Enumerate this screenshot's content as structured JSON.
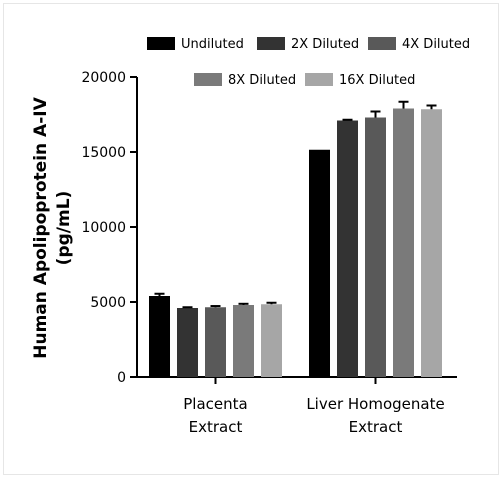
{
  "chart_data": {
    "type": "bar",
    "ylabel_line1": "Human Apolipoprotein A-IV",
    "ylabel_line2": "(pg/mL)",
    "ylim": [
      0,
      20000
    ],
    "yticks": [
      "0",
      "5000",
      "10000",
      "15000",
      "20000"
    ],
    "categories": [
      {
        "line1": "Placenta",
        "line2": "Extract"
      },
      {
        "line1": "Liver Homogenate",
        "line2": "Extract"
      }
    ],
    "series": [
      {
        "name": "Undiluted",
        "color": "#000000",
        "values": [
          5400,
          15150
        ],
        "errors": [
          150,
          0
        ]
      },
      {
        "name": "2X Diluted",
        "color": "#333333",
        "values": [
          4600,
          17100
        ],
        "errors": [
          50,
          50
        ]
      },
      {
        "name": "4X Diluted",
        "color": "#595959",
        "values": [
          4650,
          17300
        ],
        "errors": [
          80,
          400
        ]
      },
      {
        "name": "8X Diluted",
        "color": "#7a7a7a",
        "values": [
          4800,
          17900
        ],
        "errors": [
          80,
          450
        ]
      },
      {
        "name": "16X Diluted",
        "color": "#a6a6a6",
        "values": [
          4850,
          17850
        ],
        "errors": [
          100,
          250
        ]
      }
    ],
    "legend_position": "top",
    "grid": false
  }
}
